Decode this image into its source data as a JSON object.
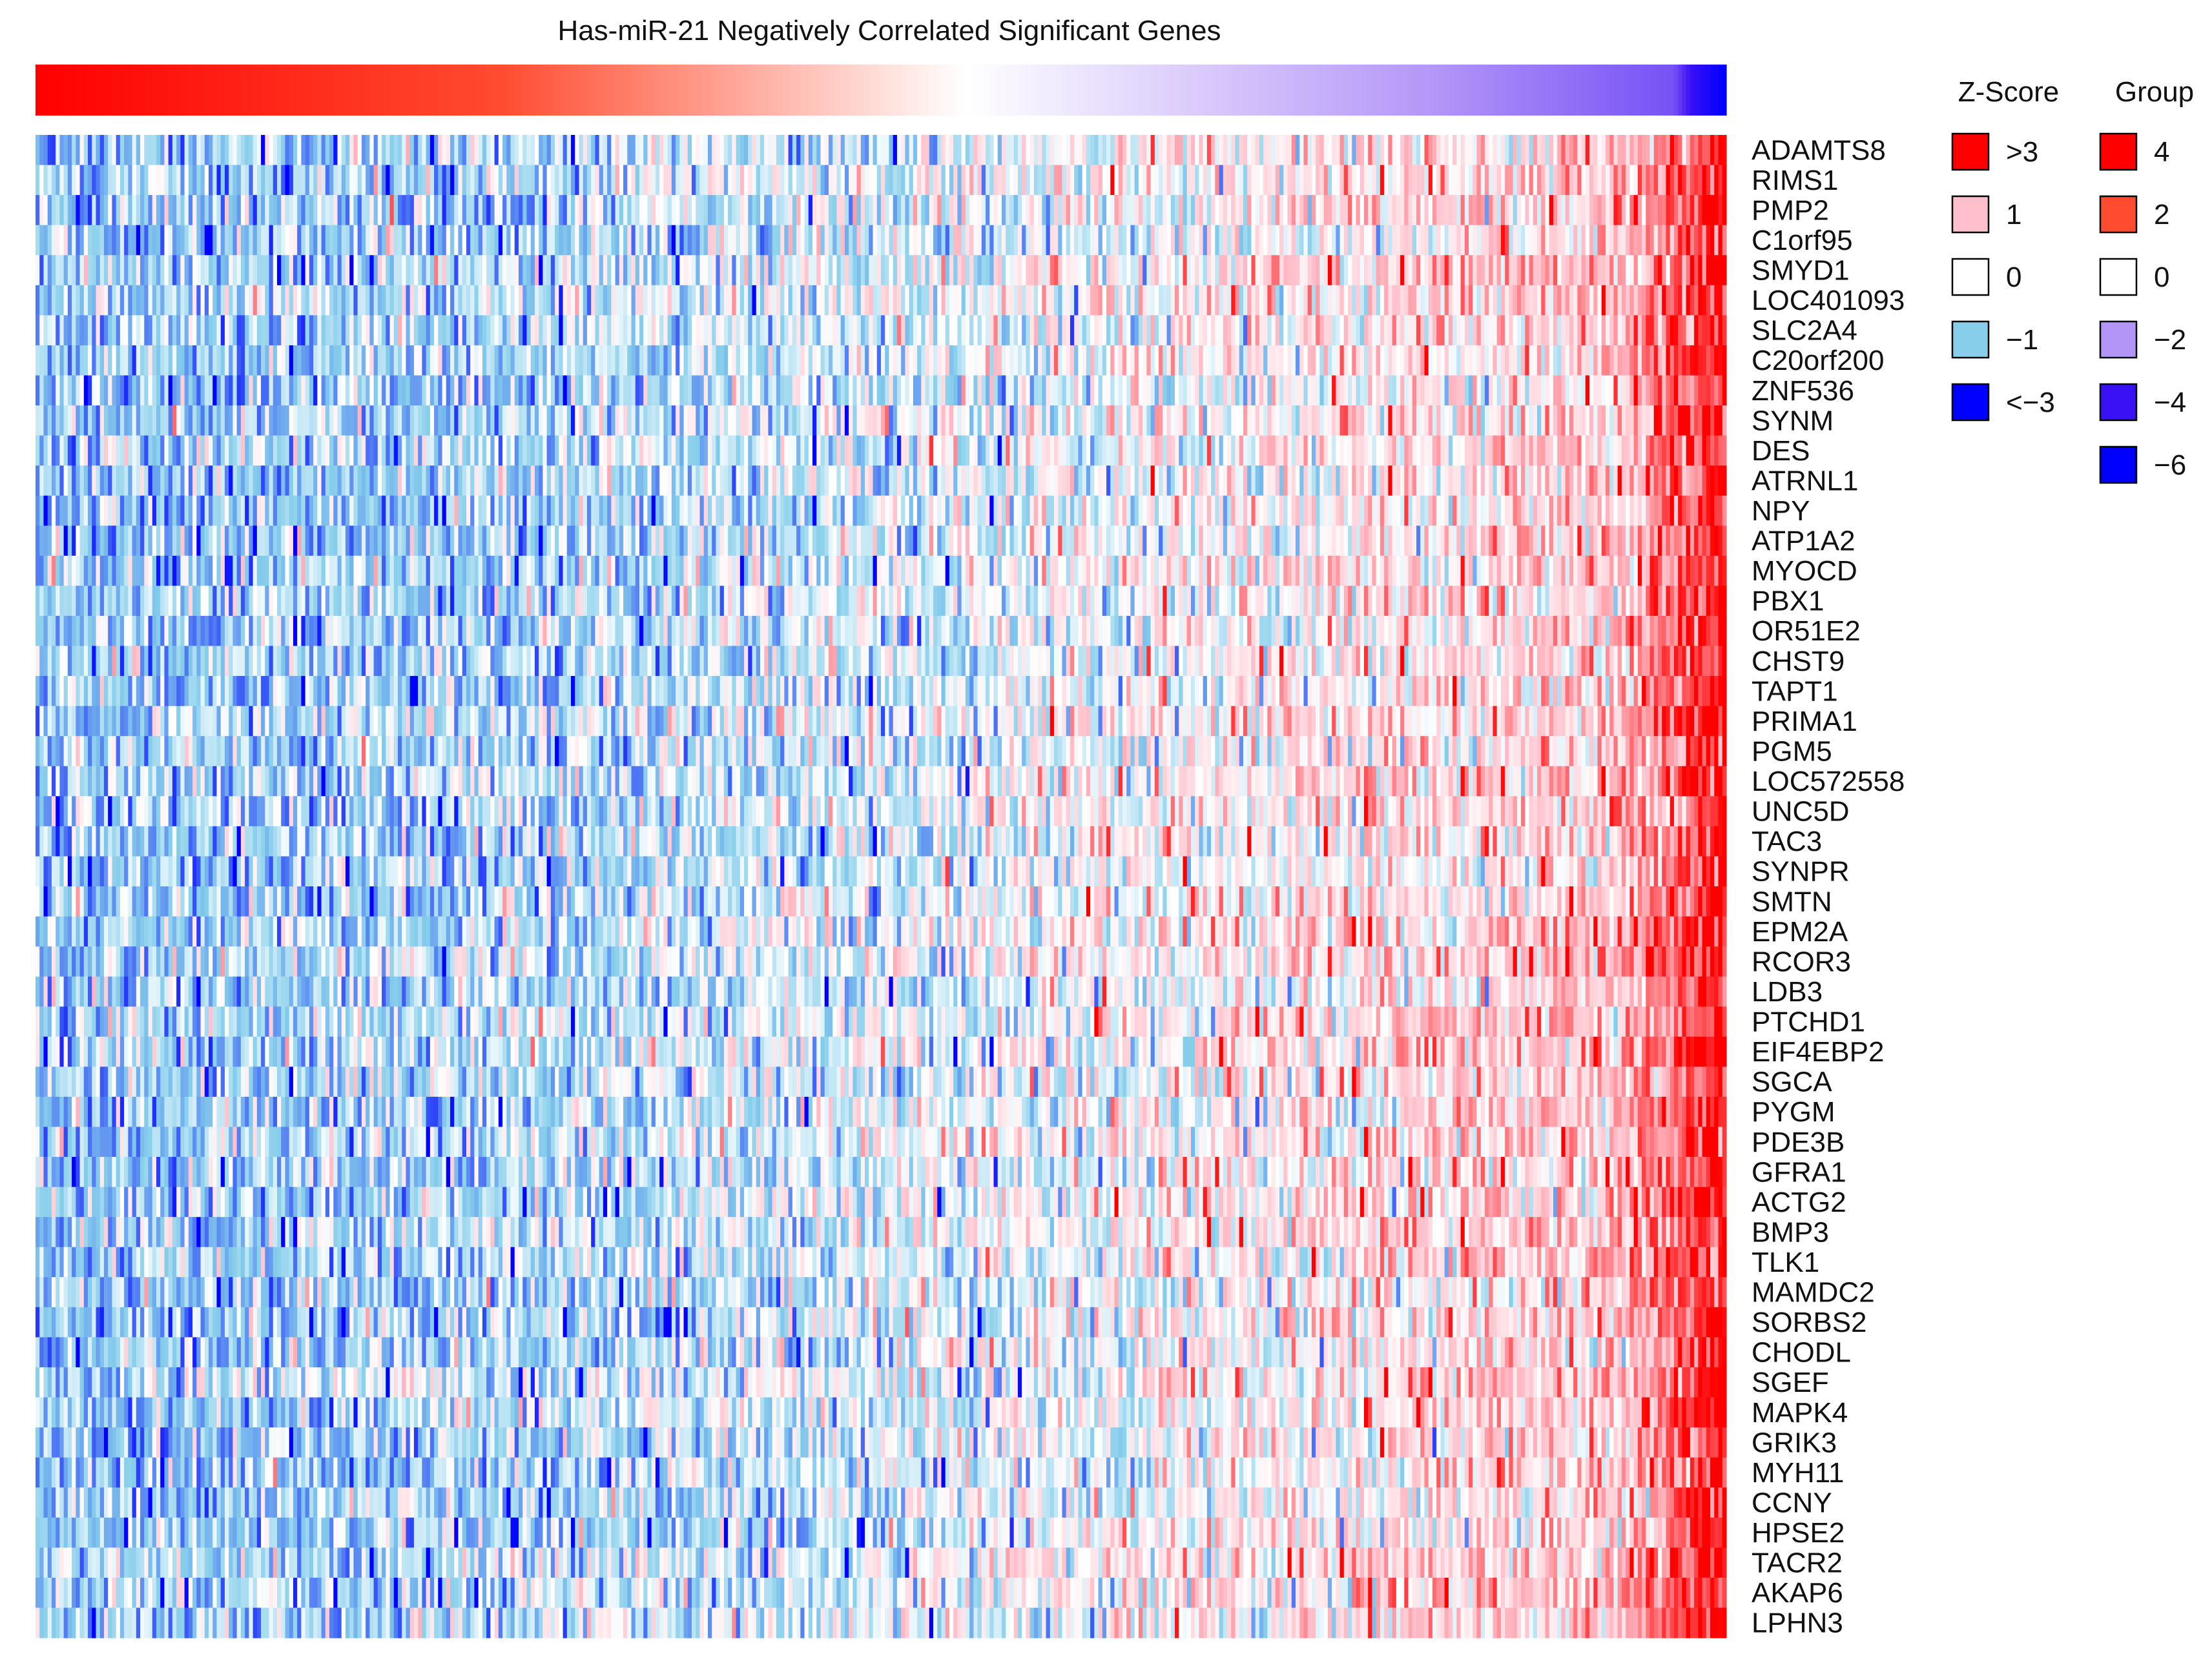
{
  "chart_data": {
    "type": "heatmap",
    "title": "Has-miR-21 Negatively Correlated Significant Genes",
    "xlabel": "",
    "ylabel": "",
    "num_samples": 420,
    "group_bar": {
      "description_values": "group annotation gradient ordered by sample (low miR-21 -> high miR-21)",
      "range": [
        4,
        -6
      ]
    },
    "genes": [
      "ADAMTS8",
      "RIMS1",
      "PMP2",
      "C1orf95",
      "SMYD1",
      "LOC401093",
      "SLC2A4",
      "C20orf200",
      "ZNF536",
      "SYNM",
      "DES",
      "ATRNL1",
      "NPY",
      "ATP1A2",
      "MYOCD",
      "PBX1",
      "OR51E2",
      "CHST9",
      "TAPT1",
      "PRIMA1",
      "PGM5",
      "LOC572558",
      "UNC5D",
      "TAC3",
      "SYNPR",
      "SMTN",
      "EPM2A",
      "RCOR3",
      "LDB3",
      "PTCHD1",
      "EIF4EBP2",
      "SGCA",
      "PYGM",
      "PDE3B",
      "GFRA1",
      "ACTG2",
      "BMP3",
      "TLK1",
      "MAMDC2",
      "SORBS2",
      "CHODL",
      "SGEF",
      "MAPK4",
      "GRIK3",
      "MYH11",
      "CCNY",
      "HPSE2",
      "TACR2",
      "AKAP6",
      "LPHN3"
    ],
    "zscore_legend": {
      "title": "Z-Score",
      "items": [
        {
          "label": ">3",
          "color": "#ff0000"
        },
        {
          "label": "1",
          "color": "#ffc0cb"
        },
        {
          "label": "0",
          "color": "#ffffff"
        },
        {
          "label": "−1",
          "color": "#87ceeb"
        },
        {
          "label": "<−3",
          "color": "#0000ff"
        }
      ]
    },
    "group_legend": {
      "title": "Group",
      "items": [
        {
          "label": "4",
          "color": "#ff0000"
        },
        {
          "label": "2",
          "color": "#ff4c30"
        },
        {
          "label": "0",
          "color": "#ffffff"
        },
        {
          "label": "−2",
          "color": "#b395f7"
        },
        {
          "label": "−4",
          "color": "#3a10f5"
        },
        {
          "label": "−6",
          "color": "#0000ff"
        }
      ]
    },
    "trend": "Z-scores rise from mostly negative (blue) on the left to strongly positive (red) on the right for all genes"
  }
}
